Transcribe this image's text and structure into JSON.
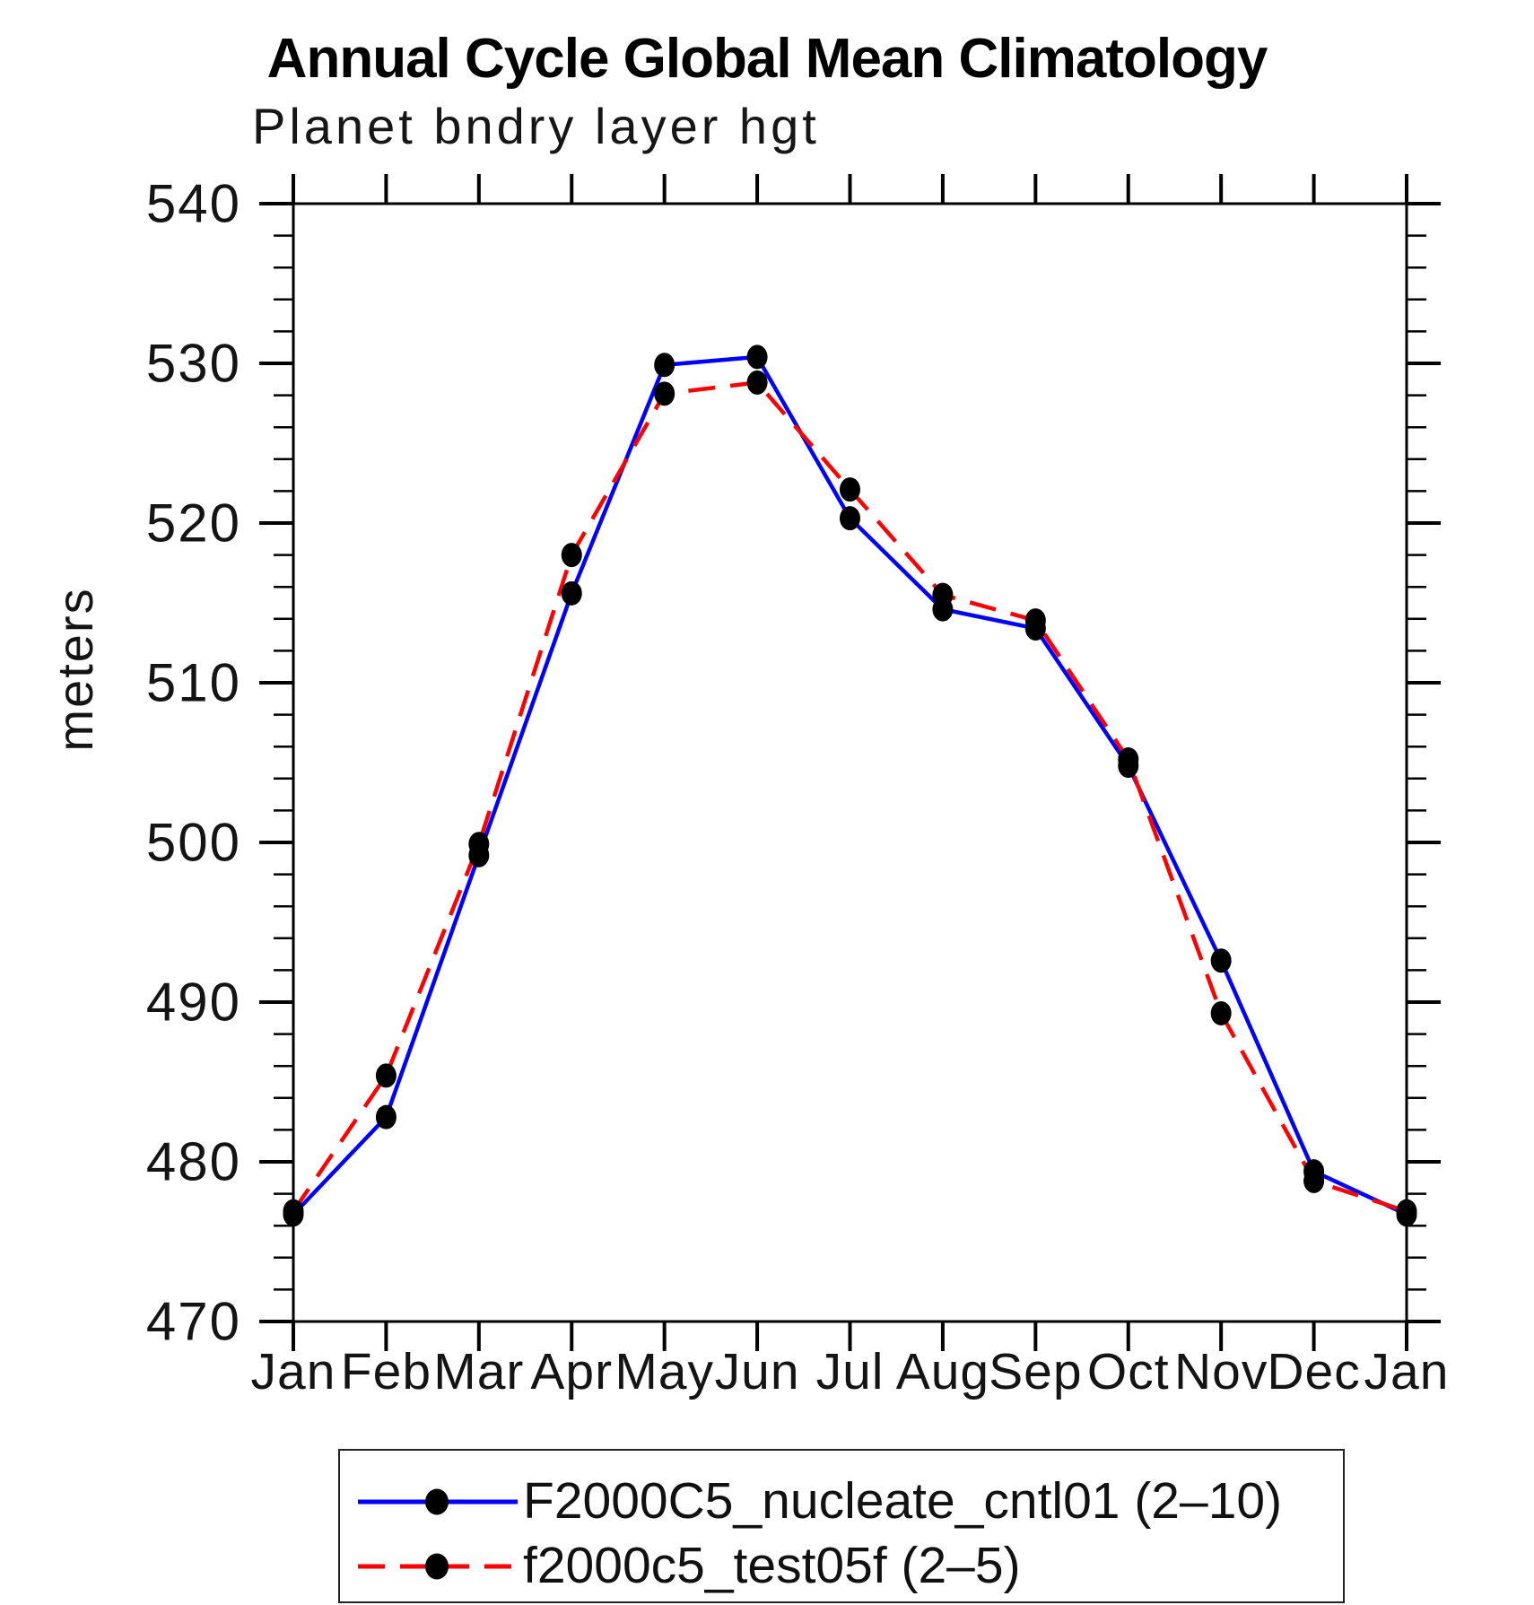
{
  "title": "Annual Cycle Global Mean Climatology",
  "subtitle": "Planet bndry layer hgt",
  "legend": {
    "items": [
      {
        "label": "F2000C5_nucleate_cntl01 (2–10)",
        "color": "#0000ff",
        "style": "solid"
      },
      {
        "label": "f2000c5_test05f (2–5)",
        "color": "#ff0000",
        "style": "dashed"
      }
    ],
    "marker_color": "#000000"
  },
  "chart_data": {
    "type": "line",
    "title": "Annual Cycle Global Mean Climatology",
    "subtitle": "Planet bndry layer hgt",
    "ylabel": "meters",
    "xlabel": "",
    "categories": [
      "Jan",
      "Feb",
      "Mar",
      "Apr",
      "May",
      "Jun",
      "Jul",
      "Aug",
      "Sep",
      "Oct",
      "Nov",
      "Dec",
      "Jan"
    ],
    "series": [
      {
        "name": "F2000C5_nucleate_cntl01 (2–10)",
        "color": "#0000ff",
        "dash": "solid",
        "values": [
          476.7,
          482.8,
          499.2,
          515.6,
          529.9,
          530.4,
          520.3,
          514.6,
          513.4,
          504.8,
          492.6,
          479.4,
          476.7
        ]
      },
      {
        "name": "f2000c5_test05f (2–5)",
        "color": "#ff0000",
        "dash": "dashed",
        "values": [
          476.9,
          485.4,
          499.9,
          518.0,
          528.1,
          528.8,
          522.1,
          515.5,
          513.9,
          505.2,
          489.3,
          478.8,
          476.9
        ]
      }
    ],
    "ylim": [
      470,
      540
    ],
    "yticks": [
      470,
      480,
      490,
      500,
      510,
      520,
      530,
      540
    ],
    "ytick_minor_step": 2,
    "marker": "circle",
    "marker_color": "#000000",
    "grid": false,
    "legend_position": "bottom"
  }
}
